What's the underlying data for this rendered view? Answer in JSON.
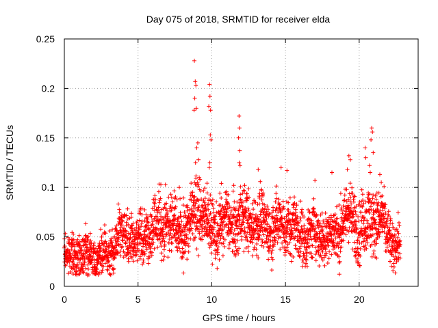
{
  "chart_data": {
    "type": "scatter",
    "title": "Day 075 of 2018, SRMTID for receiver elda",
    "xlabel": "GPS time / hours",
    "ylabel": "SRMTID / TECUs",
    "xlim": [
      0,
      24
    ],
    "ylim": [
      0,
      0.25
    ],
    "xticks": [
      0,
      5,
      10,
      15,
      20
    ],
    "xtick_labels": [
      "0",
      "5",
      "10",
      "15",
      "20"
    ],
    "yticks": [
      0,
      0.05,
      0.1,
      0.15,
      0.2,
      0.25
    ],
    "ytick_labels": [
      "0",
      "0.05",
      "0.1",
      "0.15",
      "0.2",
      "0.25"
    ],
    "grid": true,
    "marker": "plus",
    "color": "#ff0000",
    "trend": {
      "x": [
        0,
        0.5,
        1,
        1.5,
        2,
        2.5,
        3,
        3.5,
        4,
        4.5,
        5,
        5.5,
        6,
        6.5,
        7,
        7.5,
        8,
        8.5,
        9,
        9.5,
        10,
        10.5,
        11,
        11.5,
        12,
        12.5,
        13,
        13.5,
        14,
        14.5,
        15,
        15.5,
        16,
        16.5,
        17,
        17.5,
        18,
        18.5,
        19,
        19.5,
        20,
        20.5,
        21,
        21.5,
        22,
        22.5,
        22.8
      ],
      "y": [
        0.03,
        0.031,
        0.034,
        0.032,
        0.03,
        0.029,
        0.03,
        0.045,
        0.055,
        0.05,
        0.045,
        0.052,
        0.058,
        0.062,
        0.068,
        0.062,
        0.055,
        0.063,
        0.08,
        0.072,
        0.055,
        0.06,
        0.065,
        0.062,
        0.068,
        0.066,
        0.064,
        0.062,
        0.06,
        0.062,
        0.063,
        0.06,
        0.052,
        0.05,
        0.055,
        0.052,
        0.05,
        0.055,
        0.068,
        0.07,
        0.06,
        0.062,
        0.072,
        0.065,
        0.05,
        0.04,
        0.045
      ],
      "spread": [
        0.01,
        0.01,
        0.012,
        0.012,
        0.011,
        0.011,
        0.012,
        0.013,
        0.014,
        0.014,
        0.014,
        0.015,
        0.015,
        0.016,
        0.016,
        0.016,
        0.016,
        0.017,
        0.02,
        0.018,
        0.015,
        0.016,
        0.016,
        0.017,
        0.017,
        0.016,
        0.016,
        0.016,
        0.016,
        0.016,
        0.016,
        0.016,
        0.015,
        0.015,
        0.015,
        0.015,
        0.015,
        0.016,
        0.017,
        0.018,
        0.017,
        0.017,
        0.018,
        0.017,
        0.014,
        0.012,
        0.012
      ],
      "step_hours": 0.0083
    },
    "outliers": [
      {
        "x": 8.82,
        "y": 0.228
      },
      {
        "x": 8.88,
        "y": 0.207
      },
      {
        "x": 8.92,
        "y": 0.203
      },
      {
        "x": 8.85,
        "y": 0.19
      },
      {
        "x": 8.95,
        "y": 0.18
      },
      {
        "x": 8.8,
        "y": 0.178
      },
      {
        "x": 9.05,
        "y": 0.145
      },
      {
        "x": 8.98,
        "y": 0.14
      },
      {
        "x": 9.1,
        "y": 0.128
      },
      {
        "x": 8.9,
        "y": 0.125
      },
      {
        "x": 9.15,
        "y": 0.11
      },
      {
        "x": 9.2,
        "y": 0.108
      },
      {
        "x": 9.85,
        "y": 0.204
      },
      {
        "x": 9.88,
        "y": 0.192
      },
      {
        "x": 9.8,
        "y": 0.182
      },
      {
        "x": 9.92,
        "y": 0.178
      },
      {
        "x": 9.9,
        "y": 0.153
      },
      {
        "x": 9.95,
        "y": 0.148
      },
      {
        "x": 9.87,
        "y": 0.125
      },
      {
        "x": 9.83,
        "y": 0.12
      },
      {
        "x": 11.85,
        "y": 0.172
      },
      {
        "x": 11.88,
        "y": 0.16
      },
      {
        "x": 11.82,
        "y": 0.15
      },
      {
        "x": 11.9,
        "y": 0.137
      },
      {
        "x": 11.86,
        "y": 0.125
      },
      {
        "x": 11.92,
        "y": 0.122
      },
      {
        "x": 20.85,
        "y": 0.16
      },
      {
        "x": 20.9,
        "y": 0.156
      },
      {
        "x": 20.8,
        "y": 0.148
      },
      {
        "x": 20.95,
        "y": 0.135
      },
      {
        "x": 20.4,
        "y": 0.14
      },
      {
        "x": 20.45,
        "y": 0.13
      },
      {
        "x": 19.3,
        "y": 0.132
      },
      {
        "x": 19.4,
        "y": 0.128
      },
      {
        "x": 19.2,
        "y": 0.118
      },
      {
        "x": 20.7,
        "y": 0.122
      },
      {
        "x": 20.75,
        "y": 0.115
      },
      {
        "x": 21.4,
        "y": 0.113
      },
      {
        "x": 21.5,
        "y": 0.105
      },
      {
        "x": 14.7,
        "y": 0.12
      },
      {
        "x": 15.1,
        "y": 0.117
      },
      {
        "x": 13.15,
        "y": 0.118
      },
      {
        "x": 18.15,
        "y": 0.115
      },
      {
        "x": 17.0,
        "y": 0.107
      },
      {
        "x": 6.55,
        "y": 0.103
      },
      {
        "x": 7.8,
        "y": 0.1
      },
      {
        "x": 10.65,
        "y": 0.104
      }
    ]
  }
}
